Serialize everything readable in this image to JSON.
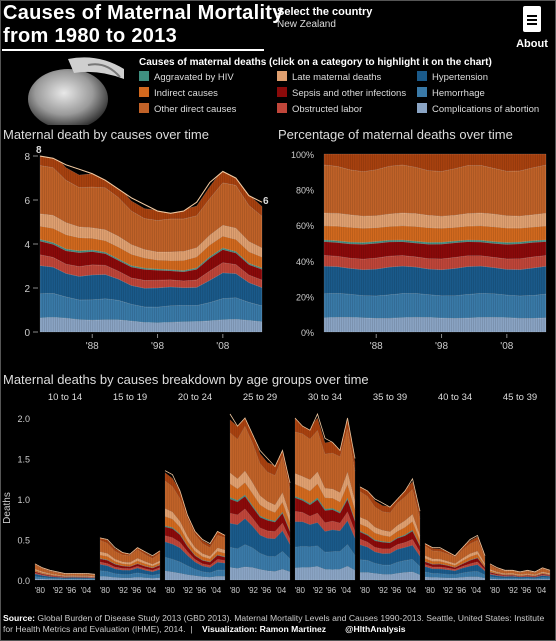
{
  "header": {
    "title_line1": "Causes of Maternal Mortality",
    "title_line2": "from 1980 to 2013",
    "select_label": "Select the country",
    "select_value": "New Zealand",
    "about_label": "About"
  },
  "legend": {
    "title": "Causes of maternal deaths (click on a category to highlight it on the chart)",
    "items": [
      {
        "label": "Aggravated by HIV",
        "color": "#3f8f80"
      },
      {
        "label": "Late maternal deaths",
        "color": "#e0a070"
      },
      {
        "label": "Hypertension",
        "color": "#1a5a8a"
      },
      {
        "label": "Indirect causes",
        "color": "#d2691e"
      },
      {
        "label": "Sepsis and other infections",
        "color": "#8b0a0a"
      },
      {
        "label": "Hemorrhage",
        "color": "#3a7aa8"
      },
      {
        "label": "Other direct causes",
        "color": "#c06228"
      },
      {
        "label": "Obstructed labor",
        "color": "#c0463a"
      },
      {
        "label": "Complications of abortion",
        "color": "#8aa4c4"
      }
    ]
  },
  "sections": {
    "over_time": "Maternal death by causes over time",
    "percentage": "Percentage of maternal deaths over time",
    "age_groups": "Maternal deaths by causes breakdown by age groups over time"
  },
  "footer": {
    "source_label": "Source:",
    "source_text": "Global Burden of Disease Study 2013 (GBD 2013). Maternal Mortality Levels and Causes 1990-2013. Seattle, United States: Institute for Health Metrics and Evaluation (IHME), 2014.",
    "viz_label": "Visualization:",
    "viz_name": "Ramon Martinez",
    "handle": "@HlthAnalysis"
  },
  "chart_data": [
    {
      "type": "area",
      "title": "Maternal death by causes over time",
      "x": [
        1980,
        1982,
        1984,
        1986,
        1988,
        1990,
        1992,
        1994,
        1996,
        1998,
        2000,
        2002,
        2004,
        2006,
        2008,
        2010,
        2012,
        2013
      ],
      "xtick_labels": [
        "'88",
        "'98",
        "'08"
      ],
      "xtick_values": [
        1988,
        1998,
        2008
      ],
      "ylim": [
        0,
        8
      ],
      "yticks": [
        0,
        2,
        4,
        6,
        8
      ],
      "annotations": [
        {
          "x": 1980,
          "text": "8"
        },
        {
          "x": 2013,
          "text": "6"
        }
      ],
      "totals": [
        8.0,
        7.9,
        7.6,
        7.4,
        7.2,
        6.9,
        6.5,
        6.1,
        5.8,
        5.5,
        5.4,
        5.5,
        5.9,
        6.8,
        7.3,
        7.0,
        6.2,
        5.9
      ],
      "shares": {
        "Complications of abortion": 0.08,
        "Hemorrhage": 0.13,
        "Hypertension": 0.15,
        "Obstructed labor": 0.06,
        "Sepsis and other infections": 0.08,
        "Aggravated by HIV": 0.01,
        "Indirect causes": 0.08,
        "Late maternal deaths": 0.07,
        "Other direct causes": 0.26,
        "top-remainder": 0.08
      }
    },
    {
      "type": "area",
      "title": "Percentage of maternal deaths over time",
      "ylim": [
        0,
        100
      ],
      "yticks_labels": [
        "0%",
        "20%",
        "40%",
        "60%",
        "80%",
        "100%"
      ],
      "xtick_labels": [
        "'88",
        "'98",
        "'08"
      ]
    },
    {
      "type": "area",
      "title": "Maternal deaths by causes breakdown by age groups over time",
      "ylabel": "Deaths",
      "ylim": [
        0,
        2.0
      ],
      "yticks_labels": [
        "0.0",
        "0.5",
        "1.0",
        "1.5",
        "2.0"
      ],
      "panel_xtick_labels": [
        "'80",
        "'92",
        "'96",
        "'04"
      ],
      "panels": [
        {
          "label": "10 to 14",
          "totals": [
            0.2,
            0.15,
            0.12,
            0.1,
            0.08,
            0.08,
            0.08,
            0.08,
            0.07
          ]
        },
        {
          "label": "15 to 19",
          "totals": [
            0.52,
            0.5,
            0.4,
            0.34,
            0.32,
            0.4,
            0.35,
            0.3,
            0.36
          ]
        },
        {
          "label": "20 to 24",
          "totals": [
            1.35,
            1.3,
            1.1,
            0.8,
            0.6,
            0.5,
            0.45,
            0.6,
            0.55
          ]
        },
        {
          "label": "25 to 29",
          "totals": [
            2.05,
            1.9,
            2.0,
            1.8,
            1.6,
            1.5,
            1.4,
            1.6,
            1.2
          ]
        },
        {
          "label": "30 to 34",
          "totals": [
            2.0,
            1.9,
            1.85,
            2.05,
            1.75,
            1.7,
            1.6,
            2.0,
            1.5
          ]
        },
        {
          "label": "35 to 39",
          "totals": [
            1.15,
            1.1,
            1.0,
            0.95,
            0.9,
            1.0,
            1.1,
            1.25,
            0.85
          ]
        },
        {
          "label": "40 to 34",
          "totals": [
            0.45,
            0.4,
            0.4,
            0.35,
            0.3,
            0.4,
            0.5,
            0.55,
            0.3
          ]
        },
        {
          "label": "45 to 39",
          "totals": [
            0.2,
            0.15,
            0.12,
            0.12,
            0.1,
            0.12,
            0.1,
            0.15,
            0.12
          ]
        }
      ]
    }
  ]
}
